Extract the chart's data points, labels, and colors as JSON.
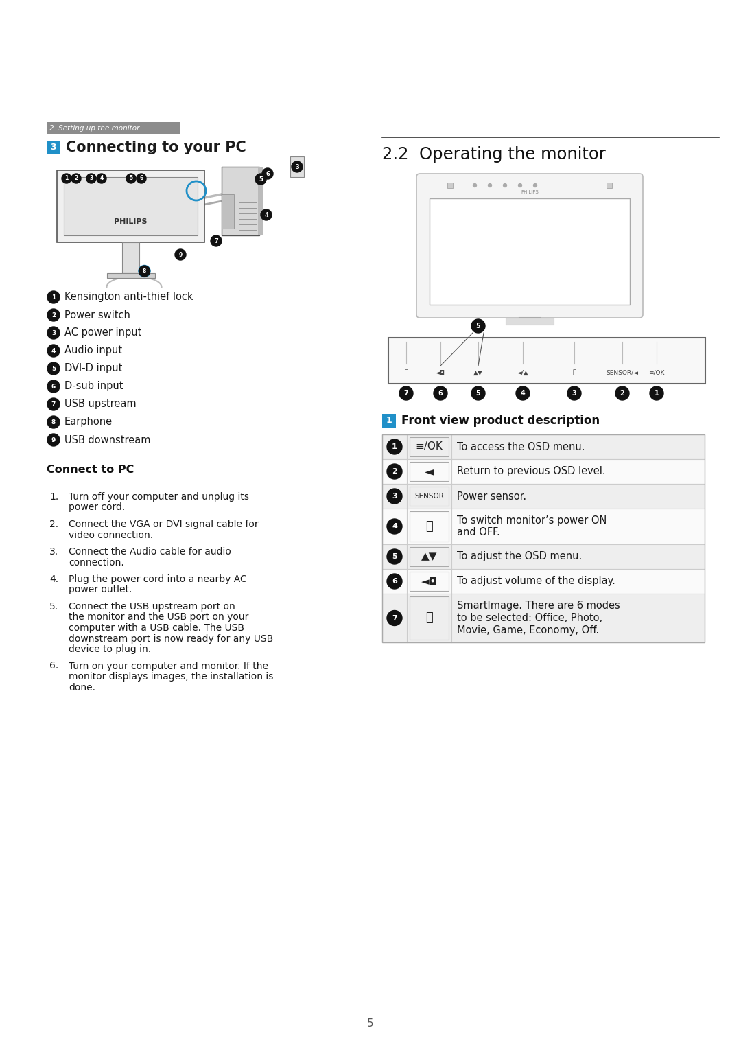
{
  "bg_color": "#ffffff",
  "page_number": "5",
  "section_label": "2. Setting up the monitor",
  "connecting_header_num": "3",
  "connecting_header": "Connecting to your PC",
  "operating_header": "2.2  Operating the monitor",
  "bullet_items": [
    "Kensington anti-thief lock",
    "Power switch",
    "AC power input",
    "Audio input",
    "DVI-D input",
    "D-sub input",
    "USB upstream",
    "Earphone",
    "USB downstream"
  ],
  "connect_to_pc_title": "Connect to PC",
  "connect_to_pc_steps": [
    [
      "Turn off your computer and unplug its",
      "power cord."
    ],
    [
      "Connect the VGA or DVI signal cable for",
      "video connection."
    ],
    [
      "Connect the Audio cable for audio",
      "connection."
    ],
    [
      "Plug the power cord into a nearby AC",
      "power outlet."
    ],
    [
      "Connect the USB upstream port on",
      "the monitor and the USB port on your",
      "computer with a USB cable. The USB",
      "downstream port is now ready for any USB",
      "device to plug in."
    ],
    [
      "Turn on your computer and monitor. If the",
      "monitor displays images, the installation is",
      "done."
    ]
  ],
  "front_view_title": "Front view product description",
  "table_rows": [
    {
      "num": "1",
      "icon": "≡/OK",
      "icon_size": 11,
      "desc": [
        "To access the OSD menu."
      ],
      "icon_border": true
    },
    {
      "num": "2",
      "icon": "◄",
      "icon_size": 13,
      "desc": [
        "Return to previous OSD level."
      ],
      "icon_border": true
    },
    {
      "num": "3",
      "icon": "SENSOR",
      "icon_size": 7.5,
      "desc": [
        "Power sensor."
      ],
      "icon_border": true
    },
    {
      "num": "4",
      "icon": "⏻",
      "icon_size": 13,
      "desc": [
        "To switch monitor’s power ON",
        "and OFF."
      ],
      "icon_border": true
    },
    {
      "num": "5",
      "icon": "▲▼",
      "icon_size": 11,
      "desc": [
        "To adjust the OSD menu."
      ],
      "icon_border": true
    },
    {
      "num": "6",
      "icon": "◄◘",
      "icon_size": 11,
      "desc": [
        "To adjust volume of the display."
      ],
      "icon_border": true
    },
    {
      "num": "7",
      "icon": "⎗",
      "icon_size": 13,
      "desc": [
        "SmartImage. There are 6 modes",
        "to be selected: Office, Photo,",
        "Movie, Game, Economy, Off."
      ],
      "icon_border": true
    }
  ]
}
